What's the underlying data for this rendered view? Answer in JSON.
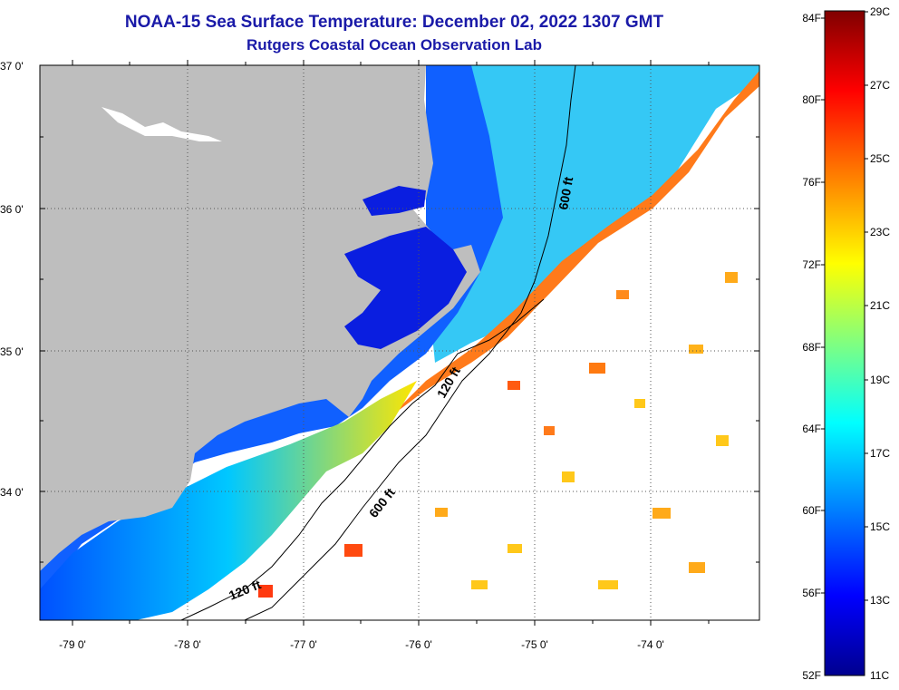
{
  "title": "NOAA-15 Sea Surface Temperature:  December 02, 2022 1307 GMT",
  "subtitle": "Rutgers Coastal Ocean Observation Lab",
  "map": {
    "lat_labels": [
      "37 0'",
      "36 0'",
      "35 0'",
      "34 0'"
    ],
    "lon_labels": [
      "-79 0'",
      "-78 0'",
      "-77 0'",
      "-76 0'",
      "-75 0'",
      "-74 0'"
    ],
    "contours": {
      "c120": "120 ft",
      "c600": "600 ft"
    },
    "land_color": "#bebebe",
    "nodata_color": "#ffffff"
  },
  "colorbar": {
    "fahrenheit": [
      "84F",
      "80F",
      "76F",
      "72F",
      "68F",
      "64F",
      "60F",
      "56F",
      "52F"
    ],
    "celsius": [
      "29C",
      "27C",
      "25C",
      "23C",
      "21C",
      "19C",
      "17C",
      "15C",
      "13C",
      "11C"
    ],
    "colors_top_to_bottom": [
      "#800000",
      "#ff0000",
      "#ff8000",
      "#ffff00",
      "#80ff80",
      "#00ffff",
      "#0080ff",
      "#0000ff",
      "#00008f"
    ]
  }
}
